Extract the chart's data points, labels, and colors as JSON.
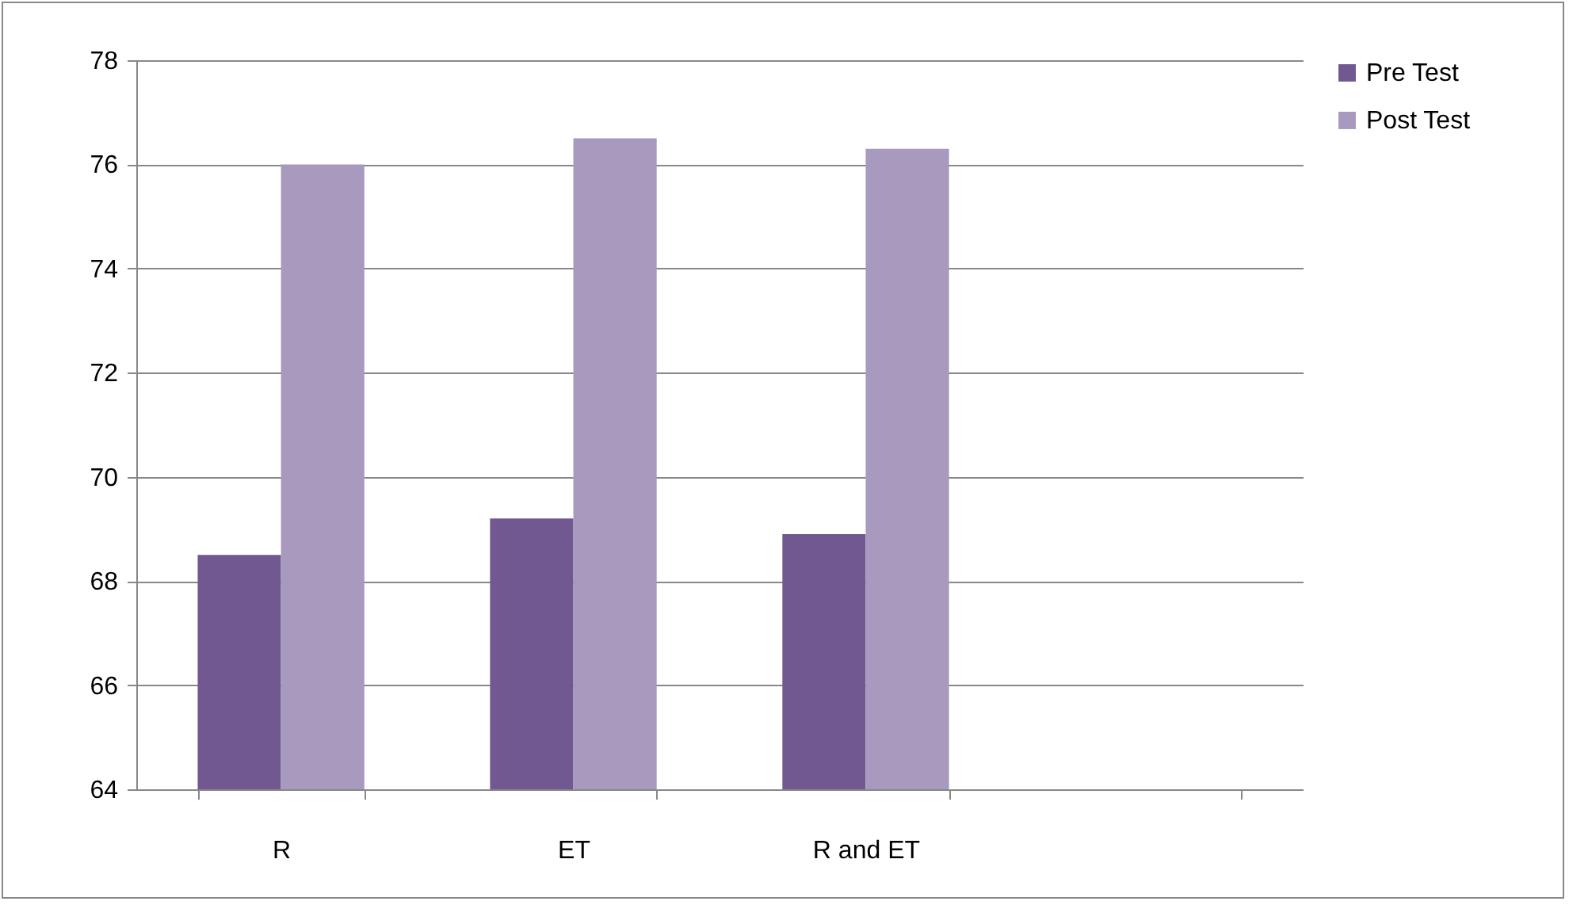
{
  "chart_data": {
    "type": "bar",
    "categories": [
      "R",
      "ET",
      "R and ET",
      null
    ],
    "series": [
      {
        "name": "Pre Test",
        "color": "#715890",
        "values": [
          68.5,
          69.2,
          68.9,
          null
        ]
      },
      {
        "name": "Post Test",
        "color": "#a899be",
        "values": [
          76.0,
          76.5,
          76.3,
          null
        ]
      }
    ],
    "ylim": [
      64,
      78
    ],
    "yticks": [
      64,
      66,
      68,
      70,
      72,
      74,
      76,
      78
    ],
    "grid": "y",
    "legend": "right"
  }
}
